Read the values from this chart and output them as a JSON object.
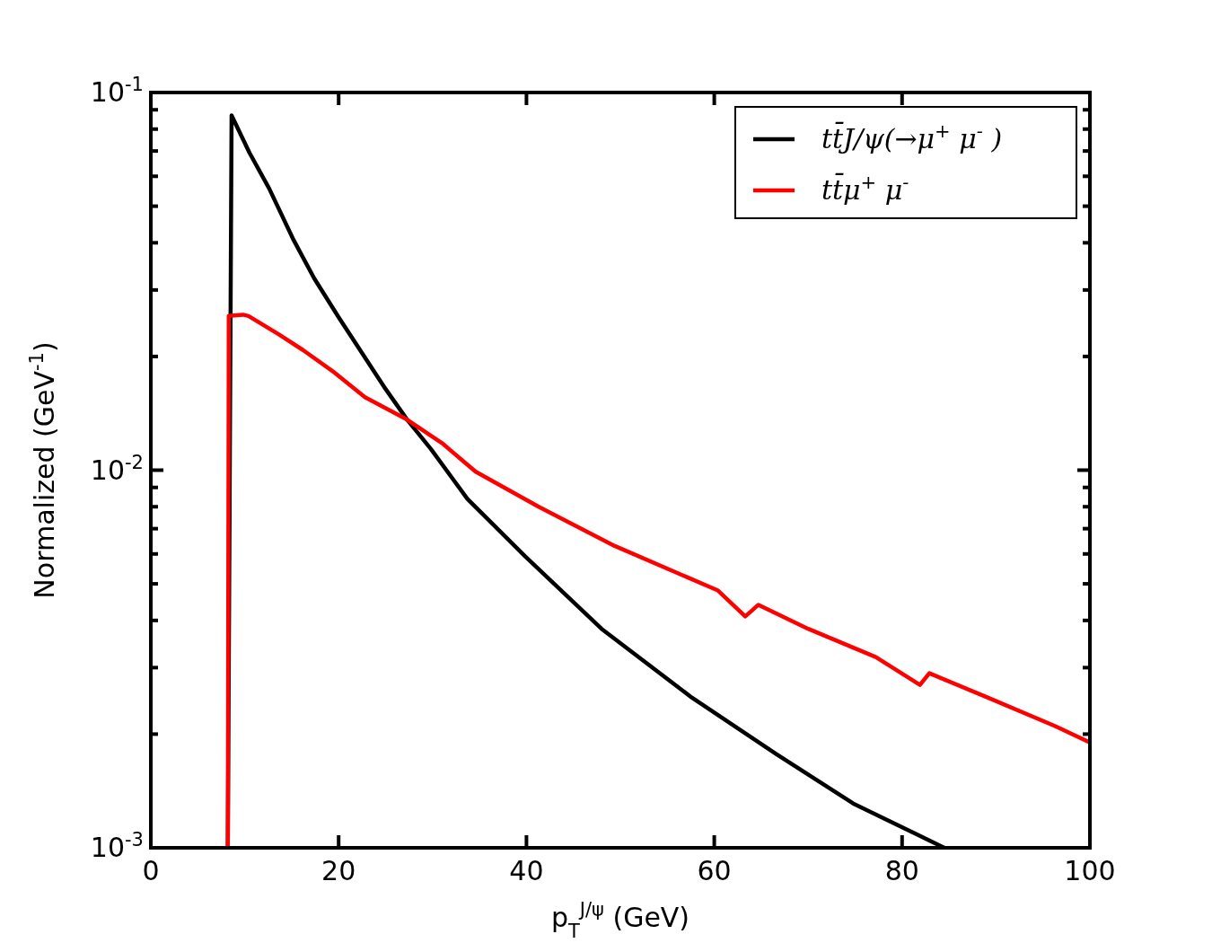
{
  "chart_data": {
    "type": "line",
    "xlabel": "p$_{T}$$^{J/ψ}$  (GeV)",
    "ylabel": "Normalized  (GeV$^{-1}$)",
    "log": "y",
    "legend": "top right",
    "grid": false,
    "line_style": "solid",
    "xlim": [
      0,
      100
    ],
    "xticks": [
      0,
      20,
      40,
      60,
      80,
      100
    ],
    "ylim": [
      0.001,
      0.1
    ],
    "yticks": [
      {
        "value": 0.001,
        "label": "10$^{-3}$"
      },
      {
        "value": 0.002,
        "label": null
      },
      {
        "value": 0.003,
        "label": null
      },
      {
        "value": 0.004,
        "label": null
      },
      {
        "value": 0.005,
        "label": null
      },
      {
        "value": 0.006,
        "label": null
      },
      {
        "value": 0.007,
        "label": null
      },
      {
        "value": 0.008,
        "label": null
      },
      {
        "value": 0.009,
        "label": null
      },
      {
        "value": 0.01,
        "label": "10$^{-2}$"
      },
      {
        "value": 0.02,
        "label": null
      },
      {
        "value": 0.03,
        "label": null
      },
      {
        "value": 0.04,
        "label": null
      },
      {
        "value": 0.05,
        "label": null
      },
      {
        "value": 0.06,
        "label": null
      },
      {
        "value": 0.07,
        "label": null
      },
      {
        "value": 0.08,
        "label": null
      },
      {
        "value": 0.09,
        "label": null
      },
      {
        "value": 0.1,
        "label": "10$^{-1}$"
      }
    ],
    "series": [
      {
        "name": "tt̄J/ψ(→μ$^{+}$ μ$^{-}$ )",
        "color": "#000000",
        "x": [
          8.2,
          8.6,
          10.5,
          12.6,
          15.2,
          17.4,
          20,
          22.5,
          25,
          27.3,
          29.8,
          33.7,
          39.9,
          48,
          57.6,
          66.6,
          74.8,
          84.5
        ],
        "values": [
          0.001,
          0.087,
          0.0693,
          0.0557,
          0.0407,
          0.0322,
          0.0254,
          0.0204,
          0.0164,
          0.0136,
          0.0114,
          0.0084,
          0.0059,
          0.0038,
          0.0025,
          0.00177,
          0.00131,
          0.001
        ]
      },
      {
        "name": "tt̄μ$^{+}$ μ$^{-}$",
        "color": "#ff0000",
        "x": [
          8.2,
          8.3,
          9.8,
          10.4,
          13.6,
          16.2,
          19.6,
          22.8,
          27.3,
          31,
          34.6,
          41.3,
          49.4,
          60.4,
          63.3,
          64.7,
          70,
          77.2,
          81.9,
          82.9,
          89.1,
          96.3,
          100
        ],
        "values": [
          0.001,
          0.0256,
          0.0258,
          0.0256,
          0.0229,
          0.0208,
          0.0181,
          0.0156,
          0.0136,
          0.0118,
          0.0099,
          0.008,
          0.0063,
          0.0048,
          0.0041,
          0.0044,
          0.0038,
          0.0032,
          0.0027,
          0.0029,
          0.0025,
          0.0021,
          0.0019
        ]
      }
    ]
  }
}
